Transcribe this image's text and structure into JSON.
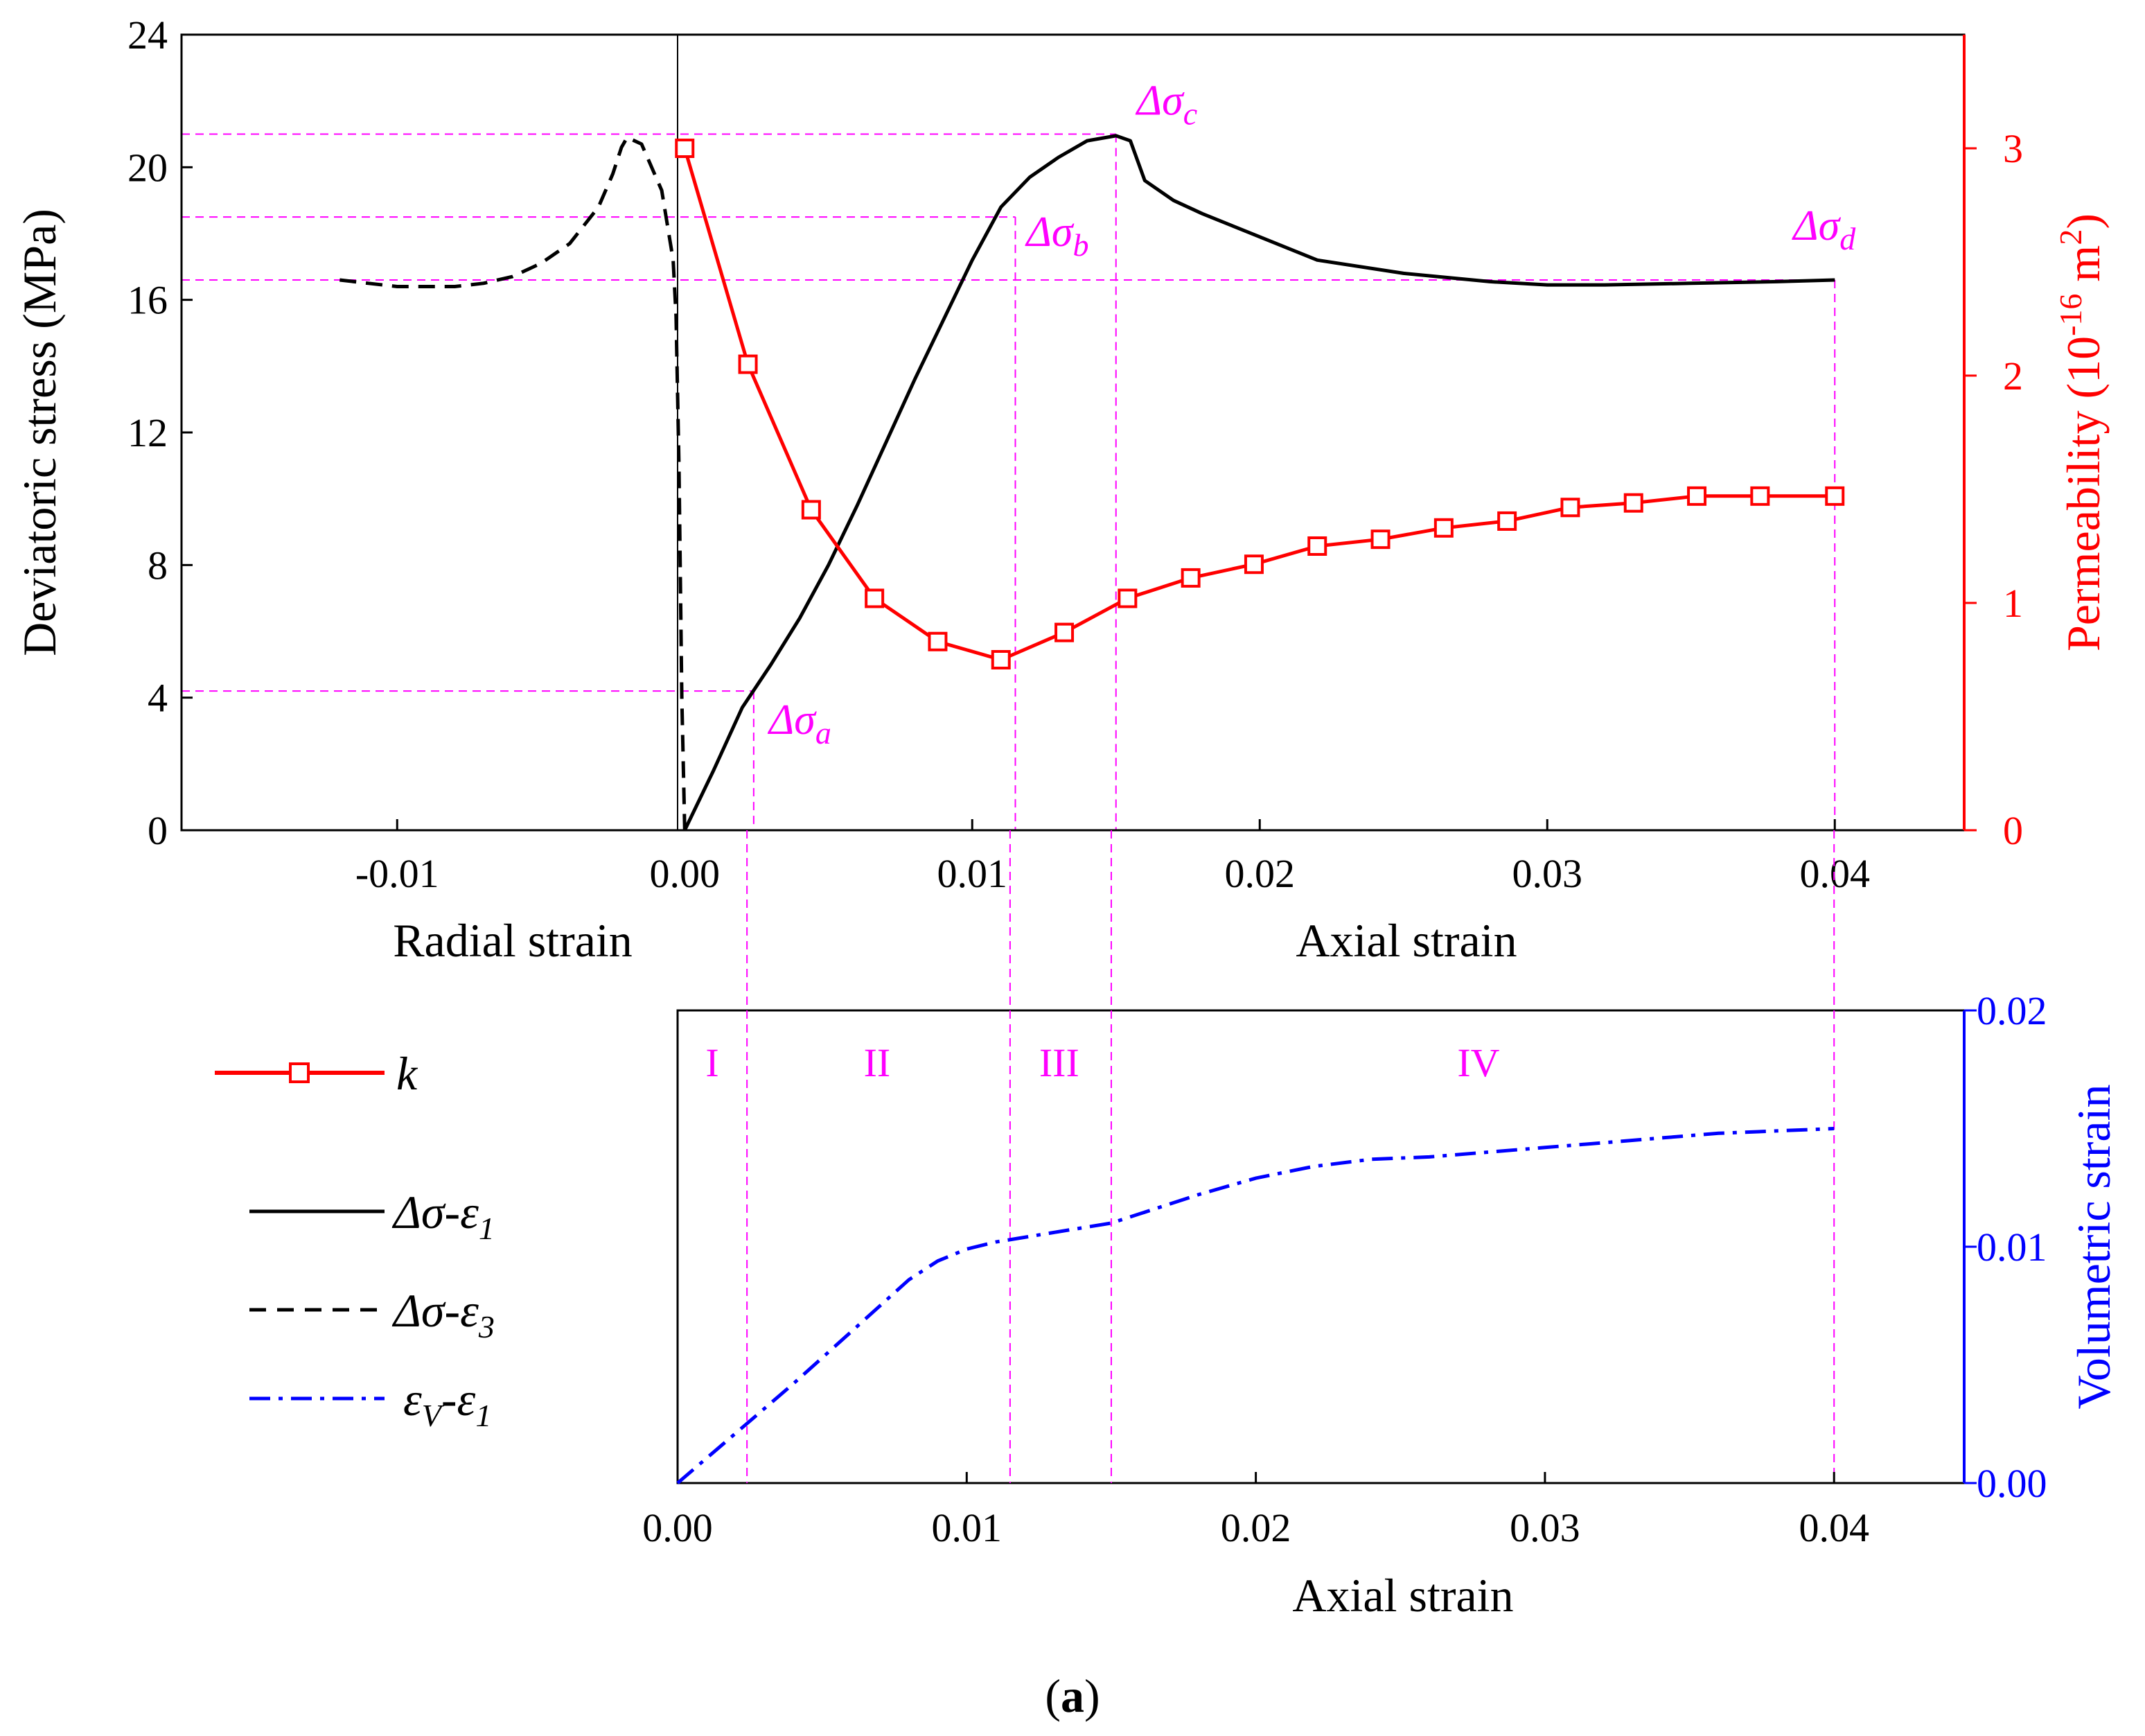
{
  "colors": {
    "black": "#000000",
    "red": "#ff0000",
    "blue": "#0000ff",
    "magenta": "#ff00ff"
  },
  "chart_data": [
    {
      "name": "top",
      "type": "line",
      "xlim": [
        -0.0175,
        0.0445
      ],
      "ylim": [
        0,
        24
      ],
      "y2lim": [
        0,
        3.5
      ],
      "xticks": [
        "-0.01",
        "0.00",
        "0.01",
        "0.02",
        "0.03",
        "0.04"
      ],
      "xtick_values": [
        -0.01,
        0.0,
        0.01,
        0.02,
        0.03,
        0.04
      ],
      "yticks": [
        "0",
        "4",
        "8",
        "12",
        "16",
        "20",
        "24"
      ],
      "ytick_values": [
        0,
        4,
        8,
        12,
        16,
        20,
        24
      ],
      "y2ticks": [
        "0",
        "1",
        "2",
        "3"
      ],
      "y2tick_values": [
        0,
        1,
        2,
        3
      ],
      "xlabel_left": "Radial strain",
      "xlabel_right": "Axial strain",
      "ylabel": "Deviatoric stress (MPa)",
      "y2label": {
        "text": "Permeability (10",
        "sup": "-16",
        "unit": " m",
        "sup2": "2",
        "close": ")"
      },
      "series": [
        {
          "name": "Δσ-ε1",
          "style": "solid",
          "color": "#000000",
          "axis": "y",
          "x": [
            0.0,
            0.001,
            0.002,
            0.003,
            0.004,
            0.005,
            0.006,
            0.007,
            0.008,
            0.009,
            0.01,
            0.011,
            0.012,
            0.013,
            0.014,
            0.015,
            0.0155,
            0.016,
            0.017,
            0.018,
            0.02,
            0.022,
            0.025,
            0.028,
            0.03,
            0.032,
            0.035,
            0.038,
            0.04
          ],
          "y": [
            0,
            1.8,
            3.7,
            5.0,
            6.4,
            8.0,
            9.8,
            11.7,
            13.6,
            15.4,
            17.2,
            18.8,
            19.7,
            20.3,
            20.8,
            20.95,
            20.8,
            19.6,
            19.0,
            18.6,
            17.9,
            17.2,
            16.8,
            16.55,
            16.45,
            16.45,
            16.5,
            16.55,
            16.6
          ]
        },
        {
          "name": "Δσ-ε3",
          "style": "dashed",
          "color": "#000000",
          "axis": "y",
          "x": [
            -0.012,
            -0.011,
            -0.01,
            -0.009,
            -0.008,
            -0.007,
            -0.006,
            -0.005,
            -0.004,
            -0.003,
            -0.0025,
            -0.0022,
            -0.002,
            -0.0015,
            -0.0008,
            -0.0004,
            -0.0003,
            -0.0002,
            -0.0001,
            0.0
          ],
          "y": [
            16.6,
            16.5,
            16.4,
            16.4,
            16.4,
            16.5,
            16.7,
            17.1,
            17.7,
            18.8,
            19.8,
            20.6,
            20.9,
            20.7,
            19.3,
            17.2,
            15.5,
            11.0,
            4.0,
            0
          ]
        },
        {
          "name": "k",
          "style": "solid-markers",
          "color": "#ff0000",
          "axis": "y2",
          "x": [
            0.0,
            0.0022,
            0.0044,
            0.0066,
            0.0088,
            0.011,
            0.0132,
            0.0154,
            0.0176,
            0.0198,
            0.022,
            0.0242,
            0.0264,
            0.0286,
            0.0308,
            0.033,
            0.0352,
            0.0374,
            0.04
          ],
          "y": [
            3.0,
            2.05,
            1.41,
            1.02,
            0.83,
            0.75,
            0.87,
            1.02,
            1.11,
            1.17,
            1.25,
            1.28,
            1.33,
            1.36,
            1.42,
            1.44,
            1.47,
            1.47,
            1.47
          ]
        }
      ],
      "annotations": [
        {
          "label": "Δσ",
          "sub": "a",
          "x": 0.0024,
          "y": 4.2
        },
        {
          "label": "Δσ",
          "sub": "b",
          "x": 0.0115,
          "y": 18.5
        },
        {
          "label": "Δσ",
          "sub": "c",
          "x": 0.015,
          "y": 21.0
        },
        {
          "label": "Δσ",
          "sub": "d",
          "x": 0.04,
          "y": 16.6
        }
      ]
    },
    {
      "name": "bottom",
      "type": "line",
      "xlim": [
        0.0,
        0.0445
      ],
      "y2lim": [
        0.0,
        0.02
      ],
      "xticks": [
        "0.00",
        "0.01",
        "0.02",
        "0.03",
        "0.04"
      ],
      "xtick_values": [
        0.0,
        0.01,
        0.02,
        0.03,
        0.04
      ],
      "y2ticks": [
        "0.00",
        "0.01",
        "0.02"
      ],
      "y2tick_values": [
        0.0,
        0.01,
        0.02
      ],
      "xlabel": "Axial strain",
      "y2label": "Volumetric strain",
      "stages": [
        {
          "label": "I",
          "x": 0.0012
        },
        {
          "label": "II",
          "x": 0.0069
        },
        {
          "label": "III",
          "x": 0.0132
        },
        {
          "label": "IV",
          "x": 0.0277
        }
      ],
      "series": [
        {
          "name": "εv-ε1",
          "style": "dashdot",
          "color": "#0000ff",
          "x": [
            0.0,
            0.002,
            0.004,
            0.006,
            0.008,
            0.009,
            0.01,
            0.011,
            0.012,
            0.013,
            0.014,
            0.015,
            0.016,
            0.018,
            0.02,
            0.022,
            0.024,
            0.026,
            0.028,
            0.03,
            0.032,
            0.034,
            0.036,
            0.038,
            0.04
          ],
          "y": [
            0.0,
            0.0021,
            0.0042,
            0.0064,
            0.0086,
            0.0094,
            0.0099,
            0.0102,
            0.0104,
            0.0106,
            0.0108,
            0.011,
            0.0114,
            0.0122,
            0.0129,
            0.0134,
            0.0137,
            0.0138,
            0.014,
            0.0142,
            0.0144,
            0.0146,
            0.0148,
            0.0149,
            0.015
          ]
        }
      ]
    }
  ],
  "legend": [
    {
      "key": "k",
      "text": "k"
    },
    {
      "key": "ds1",
      "text": "Δσ-ε",
      "sub": "1"
    },
    {
      "key": "ds3",
      "text": "Δσ-ε",
      "sub": "3"
    },
    {
      "key": "ev",
      "text": "ε",
      "sub": "V",
      "text2": "-ε",
      "sub2": "1"
    }
  ],
  "caption": {
    "open": "(",
    "letter": "a",
    "close": ")"
  }
}
